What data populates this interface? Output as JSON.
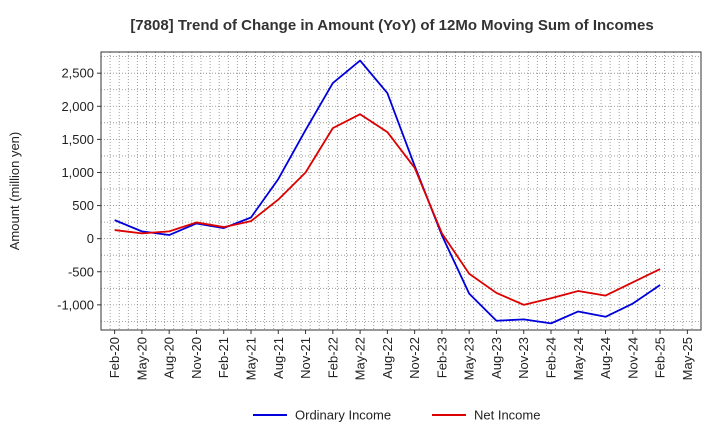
{
  "chart_data": {
    "type": "line",
    "title": "[7808]  Trend of Change in Amount (YoY) of 12Mo Moving Sum of Incomes",
    "xlabel": "",
    "ylabel": "Amount (million yen)",
    "ylim": [
      -1380,
      2820
    ],
    "yticks": [
      -1000,
      -500,
      0,
      500,
      1000,
      1500,
      2000,
      2500
    ],
    "ytick_labels": [
      "-1,000",
      "-500",
      "0",
      "500",
      "1,000",
      "1,500",
      "2,000",
      "2,500"
    ],
    "categories": [
      "Feb-20",
      "May-20",
      "Aug-20",
      "Nov-20",
      "Feb-21",
      "May-21",
      "Aug-21",
      "Nov-21",
      "Feb-22",
      "May-22",
      "Aug-22",
      "Nov-22",
      "Feb-23",
      "May-23",
      "Aug-23",
      "Nov-23",
      "Feb-24",
      "May-24",
      "Aug-24",
      "Nov-24",
      "Feb-25",
      "May-25"
    ],
    "grid": true,
    "legend_position": "bottom-center",
    "series": [
      {
        "name": "Ordinary Income",
        "color": "#0000dd",
        "values": [
          280,
          110,
          55,
          230,
          160,
          320,
          900,
          1640,
          2350,
          2690,
          2200,
          1100,
          50,
          -830,
          -1240,
          -1220,
          -1280,
          -1100,
          -1180,
          -980,
          -700,
          null
        ]
      },
      {
        "name": "Net Income",
        "color": "#dd0000",
        "values": [
          130,
          80,
          110,
          245,
          175,
          265,
          590,
          1000,
          1670,
          1880,
          1610,
          1070,
          80,
          -530,
          -820,
          -1000,
          -900,
          -790,
          -860,
          -660,
          -460,
          null
        ]
      }
    ]
  }
}
